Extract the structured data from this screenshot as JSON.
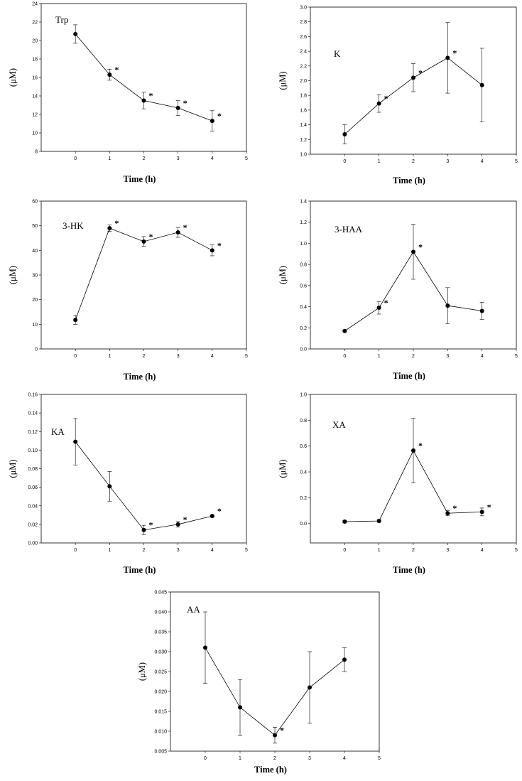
{
  "chart_data": [
    {
      "id": "trp",
      "type": "line",
      "title": "Trp",
      "xlabel": "Time (h)",
      "ylabel": "(μM)",
      "xlim": [
        -1,
        5
      ],
      "xticks": [
        0,
        1,
        2,
        3,
        4,
        5
      ],
      "ylim": [
        8,
        24
      ],
      "yticks": [
        8,
        10,
        12,
        14,
        16,
        18,
        20,
        22,
        24
      ],
      "ytick_labels": [
        "8",
        "10",
        "12",
        "14",
        "16",
        "18",
        "20",
        "22",
        "24"
      ],
      "grid": false,
      "series": [
        {
          "x": [
            0,
            1,
            2,
            3,
            4
          ],
          "y": [
            20.7,
            16.3,
            13.5,
            12.7,
            11.3
          ],
          "error": [
            1.0,
            0.6,
            0.9,
            0.8,
            1.1
          ],
          "significant": [
            false,
            true,
            true,
            true,
            true
          ]
        }
      ]
    },
    {
      "id": "k",
      "type": "line",
      "title": "K",
      "xlabel": "Time (h)",
      "ylabel": "(μM)",
      "xlim": [
        -1,
        5
      ],
      "xticks": [
        0,
        1,
        2,
        3,
        4,
        5
      ],
      "ylim": [
        1.0,
        3.0
      ],
      "yticks": [
        1.0,
        1.2,
        1.4,
        1.6,
        1.8,
        2.0,
        2.2,
        2.4,
        2.6,
        2.8,
        3.0
      ],
      "ytick_labels": [
        "1.0",
        "1.2",
        "1.4",
        "1.6",
        "1.8",
        "2.0",
        "2.2",
        "2.4",
        "2.6",
        "2.8",
        "3.0"
      ],
      "grid": false,
      "series": [
        {
          "x": [
            0,
            1,
            2,
            3,
            4
          ],
          "y": [
            1.27,
            1.69,
            2.04,
            2.31,
            1.94
          ],
          "error": [
            0.13,
            0.12,
            0.19,
            0.48,
            0.5
          ],
          "significant": [
            false,
            true,
            true,
            true,
            false
          ]
        }
      ]
    },
    {
      "id": "3hk",
      "type": "line",
      "title": "3-HK",
      "xlabel": "Time (h)",
      "ylabel": "(μM)",
      "xlim": [
        -1,
        5
      ],
      "xticks": [
        0,
        1,
        2,
        3,
        4,
        5
      ],
      "ylim": [
        0,
        60
      ],
      "yticks": [
        0,
        10,
        20,
        30,
        40,
        50,
        60
      ],
      "ytick_labels": [
        "0",
        "10",
        "20",
        "30",
        "40",
        "50",
        "60"
      ],
      "grid": false,
      "series": [
        {
          "x": [
            0,
            1,
            2,
            3,
            4
          ],
          "y": [
            11.8,
            49.0,
            43.6,
            47.3,
            40.0
          ],
          "error": [
            1.8,
            1.3,
            2.0,
            2.0,
            2.2
          ],
          "significant": [
            false,
            true,
            true,
            true,
            true
          ]
        }
      ]
    },
    {
      "id": "3haa",
      "type": "line",
      "title": "3-HAA",
      "xlabel": "Time (h)",
      "ylabel": "(μM)",
      "xlim": [
        -1,
        5
      ],
      "xticks": [
        0,
        1,
        2,
        3,
        4,
        5
      ],
      "ylim": [
        0,
        1.4
      ],
      "yticks": [
        0,
        0.2,
        0.4,
        0.6,
        0.8,
        1.0,
        1.2,
        1.4
      ],
      "ytick_labels": [
        "0.0",
        "0.2",
        "0.4",
        "0.6",
        "0.8",
        "1.0",
        "1.2",
        "1.4"
      ],
      "grid": false,
      "series": [
        {
          "x": [
            0,
            1,
            2,
            3,
            4
          ],
          "y": [
            0.17,
            0.39,
            0.92,
            0.41,
            0.36
          ],
          "error": [
            0.01,
            0.06,
            0.26,
            0.17,
            0.08
          ],
          "significant": [
            false,
            true,
            true,
            false,
            false
          ]
        }
      ]
    },
    {
      "id": "ka",
      "type": "line",
      "title": "KA",
      "xlabel": "Time (h)",
      "ylabel": "(μM)",
      "xlim": [
        -1,
        5
      ],
      "xticks": [
        0,
        1,
        2,
        3,
        4,
        5
      ],
      "ylim": [
        0,
        0.16
      ],
      "yticks": [
        0,
        0.02,
        0.04,
        0.06,
        0.08,
        0.1,
        0.12,
        0.14,
        0.16
      ],
      "ytick_labels": [
        "0.00",
        "0.02",
        "0.04",
        "0.06",
        "0.08",
        "0.10",
        "0.12",
        "0.14",
        "0.16"
      ],
      "grid": false,
      "series": [
        {
          "x": [
            0,
            1,
            2,
            3,
            4
          ],
          "y": [
            0.109,
            0.061,
            0.014,
            0.02,
            0.029
          ],
          "error": [
            0.025,
            0.016,
            0.005,
            0.003,
            0.001
          ],
          "significant": [
            false,
            false,
            true,
            true,
            true
          ]
        }
      ]
    },
    {
      "id": "xa",
      "type": "line",
      "title": "XA",
      "xlabel": "Time (h)",
      "ylabel": "(μM)",
      "xlim": [
        -1,
        5
      ],
      "xticks": [
        0,
        1,
        2,
        3,
        4,
        5
      ],
      "ylim": [
        -0.15,
        1.0
      ],
      "yticks": [
        0,
        0.2,
        0.4,
        0.6,
        0.8,
        1.0
      ],
      "ytick_labels": [
        "0.0",
        "0.2",
        "0.4",
        "0.6",
        "0.8",
        "1.0"
      ],
      "grid": false,
      "series": [
        {
          "x": [
            0,
            1,
            2,
            3,
            4
          ],
          "y": [
            0.015,
            0.02,
            0.565,
            0.08,
            0.09
          ],
          "error": [
            0.01,
            0.01,
            0.25,
            0.02,
            0.03
          ],
          "significant": [
            false,
            false,
            true,
            true,
            true
          ]
        }
      ]
    },
    {
      "id": "aa",
      "type": "line",
      "title": "AA",
      "xlabel": "Time (h)",
      "ylabel": "(μM)",
      "xlim": [
        -1,
        5
      ],
      "xticks": [
        0,
        1,
        2,
        3,
        4,
        5
      ],
      "ylim": [
        0.005,
        0.045
      ],
      "yticks": [
        0.005,
        0.01,
        0.015,
        0.02,
        0.025,
        0.03,
        0.035,
        0.04,
        0.045
      ],
      "ytick_labels": [
        "0.005",
        "0.010",
        "0.015",
        "0.020",
        "0.025",
        "0.030",
        "0.035",
        "0.040",
        "0.045"
      ],
      "grid": false,
      "series": [
        {
          "x": [
            0,
            1,
            2,
            3,
            4
          ],
          "y": [
            0.031,
            0.016,
            0.009,
            0.021,
            0.028
          ],
          "error": [
            0.009,
            0.007,
            0.002,
            0.009,
            0.003
          ],
          "significant": [
            false,
            false,
            true,
            false,
            false
          ]
        }
      ]
    }
  ]
}
